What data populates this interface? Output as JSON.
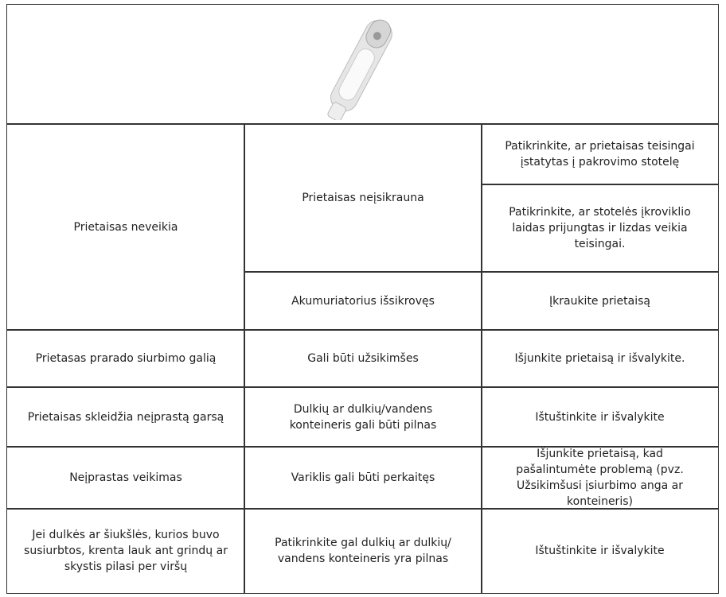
{
  "problems": [
    {
      "problem": "Prietaisas neveikia",
      "causes": [
        {
          "cause": "Prietaisas neįsikrauna",
          "solutions": [
            "Patikrinkite, ar prietaisas teisingai įstatytas į pakrovimo stotelę",
            "Patikrinkite, ar stotelės įkroviklio laidas prijungtas ir lizdas veikia teisingai."
          ]
        },
        {
          "cause": "Akumuriatorius išsikrovęs",
          "solutions": [
            "Įkraukite prietaisą"
          ]
        }
      ]
    },
    {
      "problem": "Prietasas prarado siurbimo galią",
      "causes": [
        {
          "cause": "Gali būti užsikimšes",
          "solutions": [
            "Išjunkite prietaisą ir išvalykite."
          ]
        }
      ]
    },
    {
      "problem": "Prietaisas skleidžia neįprastą garsą",
      "causes": [
        {
          "cause": "Dulkių ar dulkių/vandens konteineris gali būti pilnas",
          "solutions": [
            "Ištuštinkite ir išvalykite"
          ]
        }
      ]
    },
    {
      "problem": "Neįprastas veikimas",
      "causes": [
        {
          "cause": "Variklis gali būti perkaitęs",
          "solutions": [
            "Išjunkite prietaisą, kad pašalintumėte problemą (pvz. Užsikimšusi įsiurbimo anga ar konteineris)"
          ]
        }
      ]
    },
    {
      "problem": "Jei dulkės ar šiukšlės, kurios buvo susiurbtos, krenta lauk ant grindų ar skystis pilasi per viršų",
      "causes": [
        {
          "cause": "Patikrinkite gal dulkių ar dulkių/ vandens konteineris yra pilnas",
          "solutions": [
            "Ištuštinkite ir išvalykite"
          ]
        }
      ]
    }
  ]
}
